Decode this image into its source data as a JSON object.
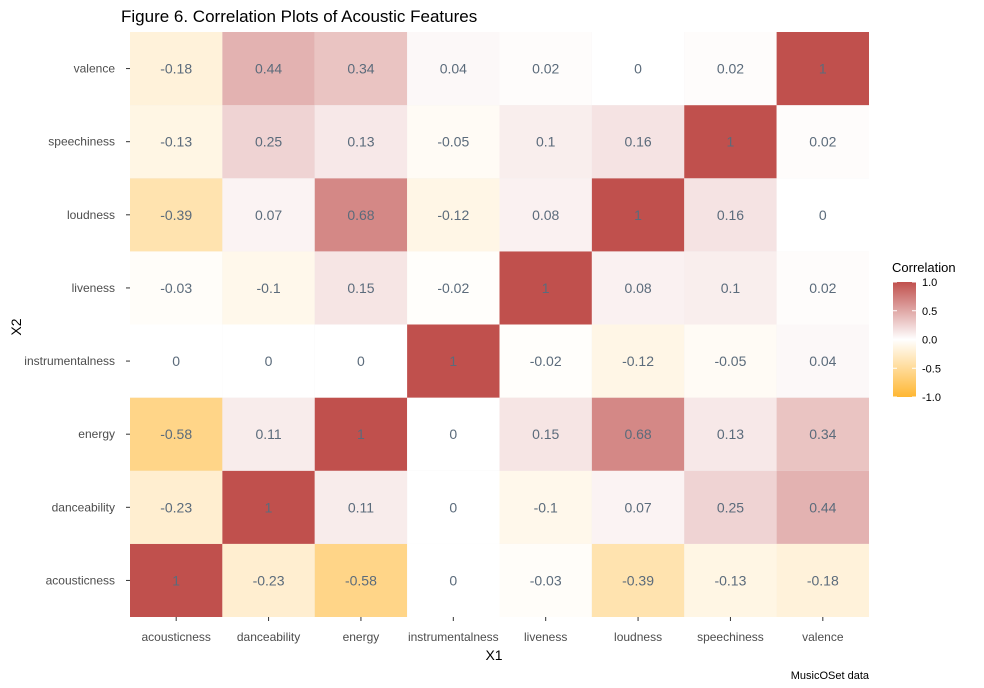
{
  "chart_data": {
    "type": "heatmap",
    "title": "Figure 6. Correlation Plots of Acoustic Features",
    "xlabel": "X1",
    "ylabel": "X2",
    "caption": "MusicOSet data",
    "x_categories": [
      "acousticness",
      "danceability",
      "energy",
      "instrumentalness",
      "liveness",
      "loudness",
      "speechiness",
      "valence"
    ],
    "y_categories": [
      "acousticness",
      "danceability",
      "energy",
      "instrumentalness",
      "liveness",
      "loudness",
      "speechiness",
      "valence"
    ],
    "matrix": [
      [
        1,
        -0.23,
        -0.58,
        0,
        -0.03,
        -0.39,
        -0.13,
        -0.18
      ],
      [
        -0.23,
        1,
        0.11,
        0,
        -0.1,
        0.07,
        0.25,
        0.44
      ],
      [
        -0.58,
        0.11,
        1,
        0,
        0.15,
        0.68,
        0.13,
        0.34
      ],
      [
        0,
        0,
        0,
        1,
        -0.02,
        -0.12,
        -0.05,
        0.04
      ],
      [
        -0.03,
        -0.1,
        0.15,
        -0.02,
        1,
        0.08,
        0.1,
        0.02
      ],
      [
        -0.39,
        0.07,
        0.68,
        -0.12,
        0.08,
        1,
        0.16,
        0
      ],
      [
        -0.13,
        0.25,
        0.13,
        -0.05,
        0.1,
        0.16,
        1,
        0.02
      ],
      [
        -0.18,
        0.44,
        0.34,
        0.04,
        0.02,
        0,
        0.02,
        1
      ]
    ],
    "legend": {
      "title": "Correlation",
      "ticks": [
        "1.0",
        "0.5",
        "0.0",
        "-0.5",
        "-1.0"
      ],
      "range": [
        -1,
        1
      ],
      "low_color": "#ffb732",
      "mid_color": "#ffffff",
      "high_color": "#c0504d"
    },
    "panel_background": "#ebebeb",
    "cell_label_color": "#5b6b7b"
  }
}
